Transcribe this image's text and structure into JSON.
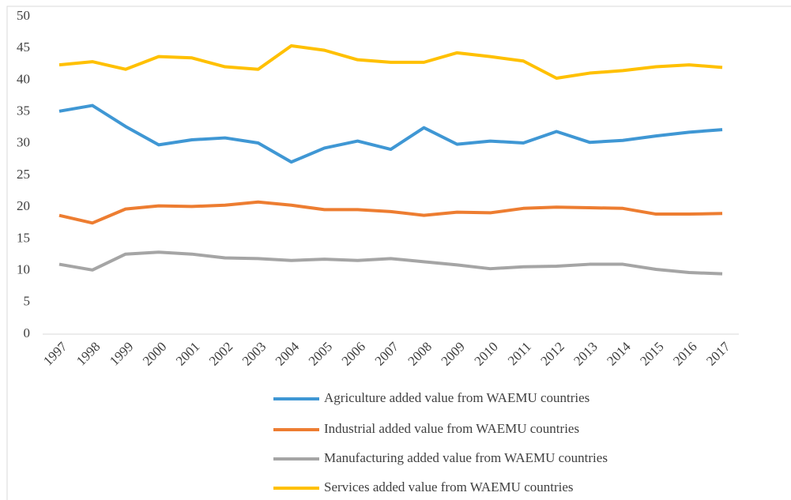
{
  "chart_data": {
    "type": "line",
    "categories": [
      "1997",
      "1998",
      "1999",
      "2000",
      "2001",
      "2002",
      "2003",
      "2004",
      "2005",
      "2006",
      "2007",
      "2008",
      "2009",
      "2010",
      "2011",
      "2012",
      "2013",
      "2014",
      "2015",
      "2016",
      "2017"
    ],
    "series": [
      {
        "name": "Agriculture added value from WAEMU countries",
        "color": "#3f97d4",
        "values": [
          35.1,
          36.0,
          32.7,
          29.8,
          30.6,
          30.9,
          30.1,
          27.1,
          29.3,
          30.4,
          29.1,
          32.5,
          29.9,
          30.4,
          30.1,
          31.9,
          30.2,
          30.5,
          31.2,
          31.8,
          32.2
        ]
      },
      {
        "name": "Industrial added value from WAEMU countries",
        "color": "#ed7d31",
        "values": [
          18.7,
          17.5,
          19.7,
          20.2,
          20.1,
          20.3,
          20.8,
          20.3,
          19.6,
          19.6,
          19.3,
          18.7,
          19.2,
          19.1,
          19.8,
          20.0,
          19.9,
          19.8,
          18.9,
          18.9,
          19.0
        ]
      },
      {
        "name": "Manufacturing added value from WAEMU countries",
        "color": "#a5a5a5",
        "values": [
          11.0,
          10.1,
          12.6,
          12.9,
          12.6,
          12.0,
          11.9,
          11.6,
          11.8,
          11.6,
          11.9,
          11.4,
          10.9,
          10.3,
          10.6,
          10.7,
          11.0,
          11.0,
          10.2,
          9.7,
          9.5
        ]
      },
      {
        "name": "Services added value from WAEMU countries",
        "color": "#ffc000",
        "values": [
          42.4,
          42.9,
          41.7,
          43.7,
          43.5,
          42.1,
          41.7,
          45.4,
          44.7,
          43.2,
          42.8,
          42.8,
          44.3,
          43.7,
          43.0,
          40.3,
          41.1,
          41.5,
          42.1,
          42.4,
          42.0
        ]
      }
    ],
    "ylim": [
      0,
      50
    ],
    "yticks": [
      0,
      5,
      10,
      15,
      20,
      25,
      30,
      35,
      40,
      45,
      50
    ],
    "grid": false,
    "legend": "bottom"
  }
}
